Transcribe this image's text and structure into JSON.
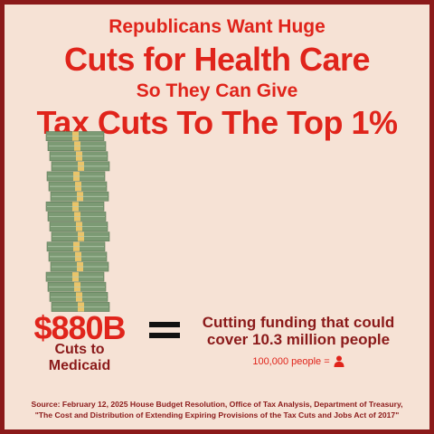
{
  "headline": {
    "line1": "Republicans Want Huge",
    "line2": "Cuts for Health Care",
    "line3": "So They Can Give",
    "line4": "Tax Cuts To The Top 1%"
  },
  "comparison": {
    "amount": "$880B",
    "amount_description": [
      "Cuts to",
      "Medicaid"
    ],
    "equals_sign": "=",
    "description": [
      "Cutting funding that could",
      "cover 10.3 million people"
    ],
    "legend_text": "100,000 people =",
    "legend_icon": "person-icon"
  },
  "icons": {
    "money_stack": "money-stack-icon",
    "legend": "person-icon"
  },
  "source": {
    "line1": "Source: February 12, 2025 House Budget Resolution, Office of Tax Analysis, Department of Treasury,",
    "line2": "\"The Cost and Distribution of Extending Expiring Provisions of the Tax Cuts and Jobs Act of 2017\""
  },
  "colors": {
    "background": "#f6e2d5",
    "border": "#8b1a1a",
    "headline_red": "#e0241b",
    "dark_red": "#8b1a1a",
    "money_green": "#7c9a74",
    "band_yellow": "#e9c46a"
  }
}
